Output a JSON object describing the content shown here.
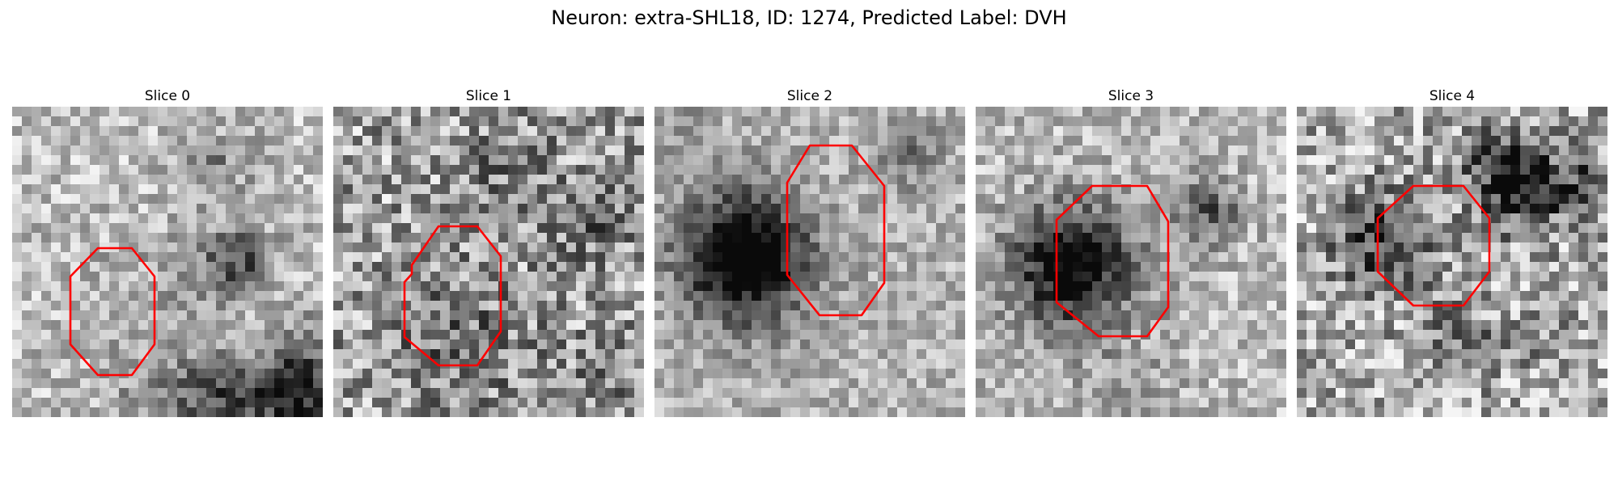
{
  "figure": {
    "title": "Neuron: extra-SHL18, ID: 1274, Predicted Label: DVH",
    "outline_color": "#ff0000",
    "image_type": "grayscale microscopy patch, pixelated"
  },
  "panels": [
    {
      "title": "Slice 0"
    },
    {
      "title": "Slice 1"
    },
    {
      "title": "Slice 2"
    },
    {
      "title": "Slice 3"
    },
    {
      "title": "Slice 4"
    }
  ]
}
